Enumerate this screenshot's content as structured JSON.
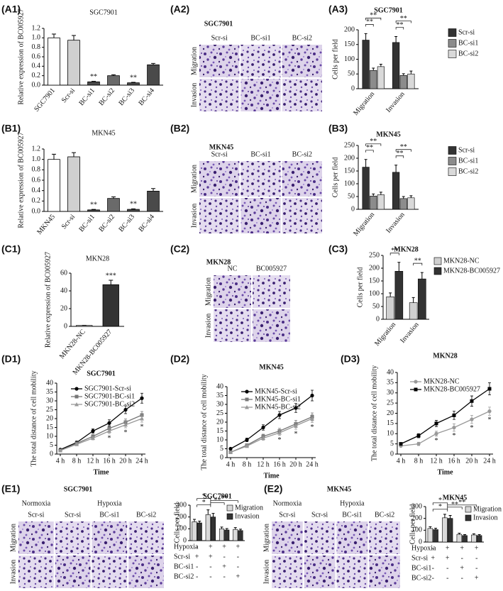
{
  "chart_data": [
    {
      "type": "bar",
      "panel": "(A1)",
      "title": "SGC7901",
      "ylabel": "Relative expression of BC005927",
      "categories": [
        "SGC7901",
        "Scr-si",
        "BC-si1",
        "BC-si2",
        "BC-si3",
        "BC-si4"
      ],
      "values": [
        1.0,
        0.95,
        0.07,
        0.2,
        0.05,
        0.43
      ],
      "errors": [
        0.08,
        0.1,
        0.01,
        0.02,
        0.01,
        0.03
      ],
      "colors": [
        "#ffffff",
        "#d0d0d0",
        "#4a4a4a",
        "#6a6a6a",
        "#4a4a4a",
        "#4a4a4a"
      ],
      "ylim": [
        0,
        1.2
      ],
      "yticks": [
        {
          "value": 0,
          "label": "0.0"
        },
        0.2,
        0.4,
        0.6,
        0.8,
        {
          "value": 1,
          "label": "1.0"
        },
        1.2
      ],
      "annotations": [
        {
          "category": "BC-si1",
          "text": "**"
        },
        {
          "category": "BC-si3",
          "text": "**"
        }
      ]
    },
    {
      "type": "grouped_bar",
      "panel": "(A3)",
      "title": "SGC7901",
      "ylabel": "Cells per field",
      "categories": [
        "Migration",
        "Invasion"
      ],
      "series": [
        {
          "name": "Scr-si",
          "color": "#333333",
          "values": [
            165,
            157
          ],
          "errors": [
            22,
            20
          ]
        },
        {
          "name": "BC-si1",
          "color": "#8c8c8c",
          "values": [
            62,
            45
          ],
          "errors": [
            8,
            6
          ]
        },
        {
          "name": "BC-si2",
          "color": "#d9d9d9",
          "values": [
            75,
            50
          ],
          "errors": [
            8,
            10
          ]
        }
      ],
      "ylim": [
        0,
        200
      ],
      "yticks": [
        0,
        50,
        100,
        150,
        200
      ],
      "annotations": [
        {
          "category": "Migration",
          "from": "Scr-si",
          "to": "BC-si1",
          "text": "**"
        },
        {
          "category": "Migration",
          "from": "Scr-si",
          "to": "BC-si2",
          "text": "**"
        },
        {
          "category": "Invasion",
          "from": "Scr-si",
          "to": "BC-si1",
          "text": "**"
        },
        {
          "category": "Invasion",
          "from": "Scr-si",
          "to": "BC-si2",
          "text": "**"
        }
      ]
    },
    {
      "type": "bar",
      "panel": "(B1)",
      "title": "MKN45",
      "ylabel": "Relative expression of BC005927",
      "categories": [
        "MKN45",
        "Scr-si",
        "BC-si1",
        "BC-si2",
        "BC-si3",
        "BC-si4"
      ],
      "values": [
        1.0,
        1.05,
        0.03,
        0.25,
        0.04,
        0.39
      ],
      "errors": [
        0.1,
        0.08,
        0.01,
        0.03,
        0.01,
        0.05
      ],
      "colors": [
        "#ffffff",
        "#d0d0d0",
        "#4a4a4a",
        "#6a6a6a",
        "#4a4a4a",
        "#4a4a4a"
      ],
      "ylim": [
        0,
        1.2
      ],
      "yticks": [
        {
          "value": 0,
          "label": "0.0"
        },
        0.2,
        0.4,
        0.6,
        0.8,
        {
          "value": 1,
          "label": "1.0"
        },
        1.2
      ],
      "annotations": [
        {
          "category": "BC-si1",
          "text": "**"
        },
        {
          "category": "BC-si3",
          "text": "**"
        }
      ]
    },
    {
      "type": "grouped_bar",
      "panel": "(B3)",
      "title": "MKN45",
      "ylabel": "Cells per field",
      "categories": [
        "Migration",
        "Invasion"
      ],
      "series": [
        {
          "name": "Scr-si",
          "color": "#333333",
          "values": [
            165,
            145
          ],
          "errors": [
            30,
            28
          ]
        },
        {
          "name": "BC-si1",
          "color": "#8c8c8c",
          "values": [
            52,
            42
          ],
          "errors": [
            8,
            8
          ]
        },
        {
          "name": "BC-si2",
          "color": "#d9d9d9",
          "values": [
            57,
            45
          ],
          "errors": [
            10,
            8
          ]
        }
      ],
      "ylim": [
        0,
        250
      ],
      "yticks": [
        0,
        50,
        100,
        150,
        200,
        250
      ],
      "annotations": [
        {
          "category": "Migration",
          "from": "Scr-si",
          "to": "BC-si1",
          "text": "**"
        },
        {
          "category": "Migration",
          "from": "Scr-si",
          "to": "BC-si2",
          "text": "**"
        },
        {
          "category": "Invasion",
          "from": "Scr-si",
          "to": "BC-si1",
          "text": "**"
        },
        {
          "category": "Invasion",
          "from": "Scr-si",
          "to": "BC-si2",
          "text": "**"
        }
      ]
    },
    {
      "type": "bar",
      "panel": "(C1)",
      "title": "MKN28",
      "ylabel": "Relative expression of BC005927",
      "categories": [
        "MKN28-NC",
        "MKN28-BC005927"
      ],
      "values": [
        1,
        47
      ],
      "errors": [
        0.2,
        5
      ],
      "colors": [
        "#ffffff",
        "#333333"
      ],
      "ylim": [
        0,
        60
      ],
      "yticks": [
        0,
        20,
        40,
        60
      ],
      "annotations": [
        {
          "category": "MKN28-BC005927",
          "text": "***"
        }
      ]
    },
    {
      "type": "grouped_bar",
      "panel": "(C3)",
      "title": "MKN28",
      "ylabel": "Cells per field",
      "categories": [
        "Migration",
        "Invasion"
      ],
      "series": [
        {
          "name": "MKN28-NC",
          "color": "#d0d0d0",
          "values": [
            88,
            65
          ],
          "errors": [
            15,
            20
          ]
        },
        {
          "name": "MKN28-BC005927",
          "color": "#333333",
          "values": [
            188,
            158
          ],
          "errors": [
            35,
            25
          ]
        }
      ],
      "ylim": [
        0,
        250
      ],
      "yticks": [
        0,
        50,
        100,
        150,
        200,
        250
      ],
      "annotations": [
        {
          "category": "Migration",
          "from": "MKN28-NC",
          "to": "MKN28-BC005927",
          "text": "**"
        },
        {
          "category": "Invasion",
          "from": "MKN28-NC",
          "to": "MKN28-BC005927",
          "text": "**"
        }
      ]
    },
    {
      "type": "line",
      "panel": "(D1)",
      "title": "SGC7901",
      "ylabel": "The total distance of cell mobility",
      "xlabel": "Time",
      "categories": [
        "4 h",
        "8 h",
        "12 h",
        "16 h",
        "20 h",
        "24 h"
      ],
      "series": [
        {
          "name": "SGC7901-Scr-si",
          "color": "#000000",
          "marker": "circle",
          "values": [
            2.5,
            6.5,
            13,
            17.5,
            25,
            31.5
          ],
          "errors": [
            0.5,
            0.8,
            1.2,
            1.8,
            2.2,
            2.8
          ]
        },
        {
          "name": "SGC7901-BC-si1",
          "color": "#777777",
          "marker": "square",
          "values": [
            2,
            6,
            10,
            14.5,
            18,
            22
          ],
          "errors": [
            0.4,
            0.7,
            1,
            1.5,
            1.8,
            2
          ]
        },
        {
          "name": "SGC7901-BC-si2",
          "color": "#999999",
          "marker": "triangle",
          "values": [
            2,
            5.5,
            9,
            13,
            16.5,
            20
          ],
          "errors": [
            0.4,
            0.6,
            1,
            1.4,
            1.7,
            2
          ]
        }
      ],
      "ylim": [
        0,
        40
      ],
      "yticks": [
        0,
        5,
        10,
        15,
        20,
        25,
        30,
        35,
        40
      ],
      "annotations": [
        {
          "category": "16 h",
          "text": "*"
        },
        {
          "category": "20 h",
          "text": "*"
        },
        {
          "category": "24 h",
          "text": "*"
        }
      ]
    },
    {
      "type": "line",
      "panel": "(D2)",
      "title": "MKN45",
      "ylabel": "The total distance of cell mobility",
      "xlabel": "Time",
      "categories": [
        "4 h",
        "8 h",
        "12 h",
        "16 h",
        "20 h",
        "24 h"
      ],
      "series": [
        {
          "name": "MKN45-Scr-si",
          "color": "#000000",
          "marker": "circle",
          "values": [
            5,
            10,
            17,
            24,
            28,
            35
          ],
          "errors": [
            0.6,
            1,
            1.5,
            2,
            2.5,
            3
          ]
        },
        {
          "name": "MKN45-BC-si1",
          "color": "#777777",
          "marker": "square",
          "values": [
            3,
            7,
            12,
            15,
            19,
            23
          ],
          "errors": [
            0.5,
            0.8,
            1.2,
            1.5,
            2,
            2.2
          ]
        },
        {
          "name": "MKN45-BC-si2",
          "color": "#999999",
          "marker": "triangle",
          "values": [
            3,
            6.5,
            11,
            14,
            18,
            22
          ],
          "errors": [
            0.5,
            0.8,
            1.2,
            1.5,
            2,
            2.2
          ]
        }
      ],
      "ylim": [
        0,
        40
      ],
      "yticks": [
        0,
        5,
        10,
        15,
        20,
        25,
        30,
        35,
        40
      ],
      "annotations": [
        {
          "category": "16 h",
          "text": "*"
        },
        {
          "category": "20 h",
          "text": "*"
        },
        {
          "category": "24 h",
          "text": "*"
        }
      ]
    },
    {
      "type": "line",
      "panel": "(D3)",
      "title": "MKN28",
      "ylabel": "The total distance of cell mobility",
      "xlabel": "Time",
      "categories": [
        "4 h",
        "8 h",
        "12 h",
        "16 h",
        "20 h",
        "24 h"
      ],
      "series": [
        {
          "name": "MKN28-NC",
          "color": "#999999",
          "marker": "circle",
          "values": [
            4,
            5,
            10,
            13,
            17,
            21
          ],
          "errors": [
            0.5,
            0.8,
            1.2,
            1.8,
            2,
            2
          ]
        },
        {
          "name": "MKN28-BC005927",
          "color": "#000000",
          "marker": "square",
          "values": [
            5,
            9,
            15,
            19,
            26,
            32
          ],
          "errors": [
            0.6,
            1,
            1.5,
            2,
            2.5,
            3
          ]
        }
      ],
      "ylim": [
        0,
        40
      ],
      "yticks": [
        0,
        5,
        10,
        15,
        20,
        25,
        30,
        35,
        40
      ],
      "annotations": [
        {
          "category": "12 h",
          "text": "*"
        },
        {
          "category": "16 h",
          "text": "*"
        },
        {
          "category": "20 h",
          "text": "*"
        },
        {
          "category": "24 h",
          "text": "*"
        }
      ]
    },
    {
      "type": "grouped_bar",
      "title": "SGC7901",
      "ylabel": "Cells per field",
      "categories": [
        null,
        null,
        null,
        null
      ],
      "series": [
        {
          "name": "Migration",
          "color": "#d9d9d9",
          "values": [
            160,
            220,
            100,
            95
          ],
          "errors": [
            20,
            40,
            15,
            15
          ]
        },
        {
          "name": "Invasion",
          "color": "#333333",
          "values": [
            150,
            200,
            90,
            85
          ],
          "errors": [
            15,
            30,
            12,
            12
          ]
        }
      ],
      "ylim": [
        0,
        300
      ],
      "yticks": [
        0,
        100,
        200,
        300
      ],
      "annotations": [
        {
          "from": 0,
          "to": 1,
          "text": "*"
        },
        {
          "from": 1,
          "to": 2,
          "text": "**"
        },
        {
          "from": 1,
          "to": 3,
          "text": "**"
        },
        {
          "from": 0,
          "to": 1,
          "text": "*"
        }
      ],
      "conditions": [
        {
          "name": "Hypoxia",
          "marks": [
            "-",
            "+",
            "+",
            "+"
          ]
        },
        {
          "name": "Scr-si",
          "marks": [
            "+",
            "+",
            "-",
            "-"
          ]
        },
        {
          "name": "BC-si1",
          "marks": [
            "-",
            "-",
            "+",
            "-"
          ]
        },
        {
          "name": "BC-si2",
          "marks": [
            "-",
            "-",
            "-",
            "+"
          ]
        }
      ]
    },
    {
      "type": "grouped_bar",
      "title": "MKN45",
      "ylabel": "Cells per field",
      "categories": [
        null,
        null,
        null,
        null
      ],
      "series": [
        {
          "name": "Migration",
          "color": "#d9d9d9",
          "values": [
            115,
            205,
            65,
            60
          ],
          "errors": [
            15,
            30,
            10,
            10
          ]
        },
        {
          "name": "Invasion",
          "color": "#333333",
          "values": [
            105,
            200,
            55,
            55
          ],
          "errors": [
            12,
            25,
            8,
            8
          ]
        }
      ],
      "ylim": [
        0,
        300
      ],
      "yticks": [
        0,
        100,
        200,
        300
      ],
      "annotations": [
        {
          "from": 0,
          "to": 1,
          "text": "*"
        },
        {
          "from": 1,
          "to": 2,
          "text": "**"
        },
        {
          "from": 1,
          "to": 3,
          "text": "**"
        },
        {
          "from": 0,
          "to": 1,
          "text": "*"
        }
      ],
      "conditions": [
        {
          "name": "Hypoxia",
          "marks": [
            "-",
            "+",
            "+",
            "+"
          ]
        },
        {
          "name": "Scr-si",
          "marks": [
            "+",
            "+",
            "-",
            "-"
          ]
        },
        {
          "name": "BC-si1",
          "marks": [
            "-",
            "-",
            "+",
            "-"
          ]
        },
        {
          "name": "BC-si2",
          "marks": [
            "-",
            "-",
            "-",
            "+"
          ]
        }
      ]
    }
  ],
  "micrographs": [
    {
      "panel": "(A2)",
      "title": "SGC7901",
      "columns": [
        "Scr-si",
        "BC-si1",
        "BC-si2"
      ],
      "rows": [
        "Migration",
        "Invasion"
      ]
    },
    {
      "panel": "(B2)",
      "title": "MKN45",
      "columns": [
        "Scr-si",
        "BC-si1",
        "BC-si2"
      ],
      "rows": [
        "Migration",
        "Invasion"
      ]
    },
    {
      "panel": "(C2)",
      "title": "MKN28",
      "columns": [
        "NC",
        "BC005927"
      ],
      "rows": [
        "Migration",
        "Invasion"
      ]
    },
    {
      "panel": "(E1)",
      "title": "SGC7901",
      "groups": [
        "Normoxia",
        "Hypoxia"
      ],
      "columns": [
        "Scr-si",
        "Scr-si",
        "BC-si1",
        "BC-si2"
      ],
      "rows": [
        "Migration",
        "Invasion"
      ]
    },
    {
      "panel": "(E2)",
      "title": "MKN45",
      "groups": [
        "Normoxia",
        "Hypoxia"
      ],
      "columns": [
        "Scr-si",
        "Scr-si",
        "BC-si1",
        "BC-si2"
      ],
      "rows": [
        "Migration",
        "Invasion"
      ]
    }
  ]
}
